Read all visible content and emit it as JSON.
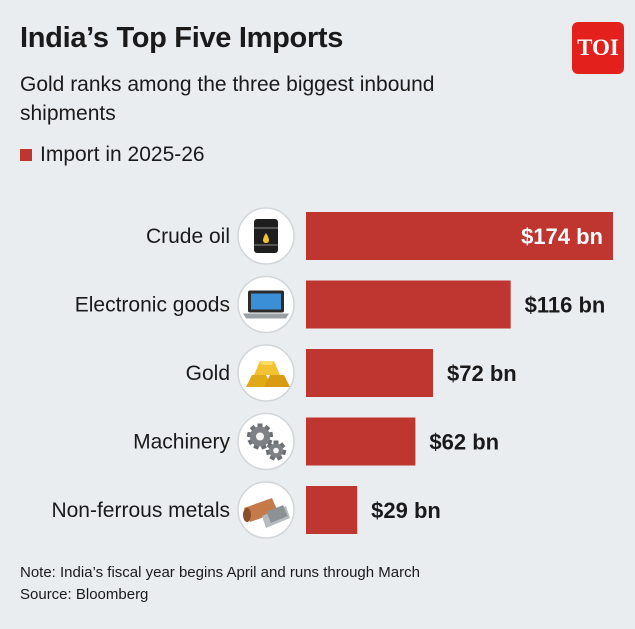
{
  "title": "India’s Top Five Imports",
  "subtitle": "Gold ranks among the three biggest inbound shipments",
  "logo_text": "TOI",
  "notes": {
    "note": "Note: India’s fiscal year begins April and runs through March",
    "source": "Source: Bloomberg"
  },
  "colors": {
    "bar": "#bf3530",
    "logo": "#e3201b"
  },
  "chart_data": {
    "type": "bar",
    "orientation": "horizontal",
    "categories": [
      "Crude oil",
      "Electronic goods",
      "Gold",
      "Machinery",
      "Non-ferrous metals"
    ],
    "icons": [
      "oil-barrel-icon",
      "laptop-icon",
      "gold-bars-icon",
      "gears-icon",
      "metal-pipes-icon"
    ],
    "series": [
      {
        "name": "Import in 2025-26",
        "values": [
          174,
          116,
          72,
          62,
          29
        ],
        "labels": [
          "$174 bn",
          "$116 bn",
          "$72 bn",
          "$62 bn",
          "$29 bn"
        ]
      }
    ],
    "grid": false,
    "legend": "top-left"
  }
}
